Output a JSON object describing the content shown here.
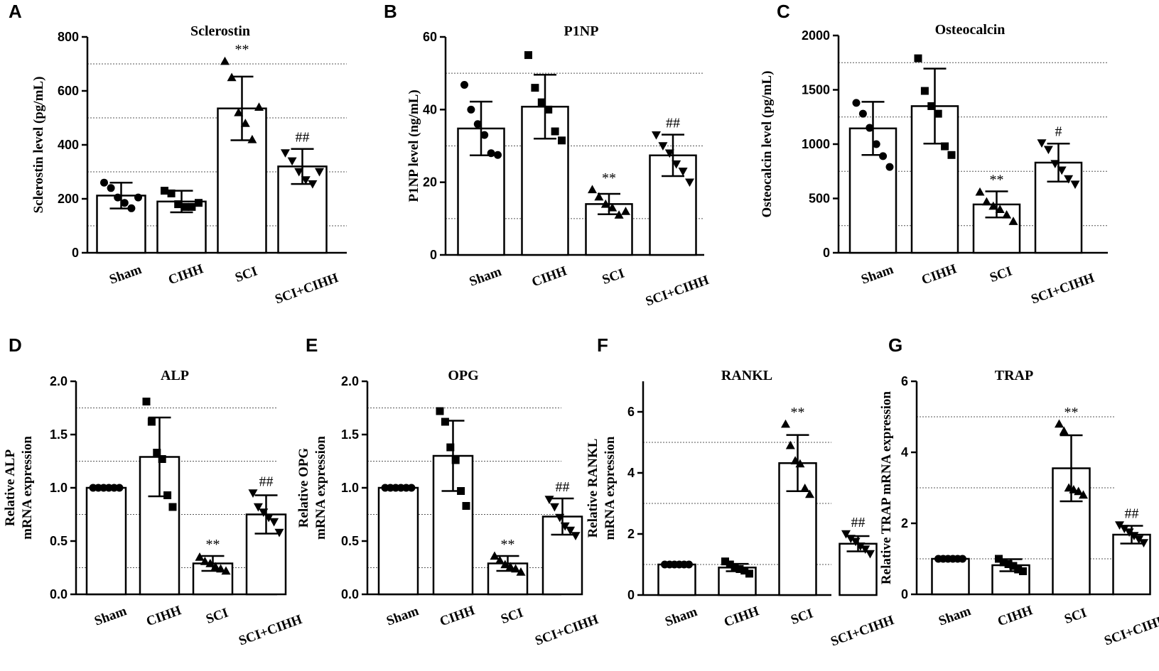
{
  "chart_data": [
    {
      "panel": "A",
      "type": "bar",
      "title": "Sclerostin",
      "ylabel": "Sclerostin level (pg/mL)",
      "ylabel2": "",
      "ylim": [
        0,
        800
      ],
      "yticks": [
        {
          "v": 0,
          "label": "0"
        },
        {
          "v": 200,
          "label": "200"
        },
        {
          "v": 400,
          "label": "400"
        },
        {
          "v": 600,
          "label": "600"
        },
        {
          "v": 800,
          "label": "800"
        }
      ],
      "gridlines": [
        100,
        300,
        500,
        700
      ],
      "categories": [
        "Sham",
        "CIHH",
        "SCI",
        "SCI+CIHH"
      ],
      "values": [
        212,
        190,
        535,
        320
      ],
      "sd": [
        48,
        40,
        118,
        65
      ],
      "points": [
        [
          260,
          240,
          205,
          185,
          165,
          205
        ],
        [
          230,
          220,
          180,
          170,
          170,
          185
        ],
        [
          710,
          650,
          520,
          480,
          420,
          540
        ],
        [
          370,
          340,
          300,
          270,
          255,
          300
        ]
      ],
      "markers": [
        "circle",
        "square",
        "triangle",
        "triangle-down"
      ],
      "annotations": [
        "",
        "",
        "**",
        "##"
      ]
    },
    {
      "panel": "B",
      "type": "bar",
      "title": "P1NP",
      "ylabel": "P1NP level (ng/mL)",
      "ylabel2": "",
      "ylim": [
        0,
        60
      ],
      "yticks": [
        {
          "v": 0,
          "label": "0"
        },
        {
          "v": 20,
          "label": "20"
        },
        {
          "v": 40,
          "label": "40"
        },
        {
          "v": 60,
          "label": "60"
        }
      ],
      "gridlines": [
        10,
        30,
        50
      ],
      "categories": [
        "Sham",
        "CIHH",
        "SCI",
        "SCI+CIHH"
      ],
      "values": [
        34.8,
        40.8,
        14.0,
        27.4
      ],
      "sd": [
        7.4,
        8.8,
        2.8,
        5.7
      ],
      "points": [
        [
          46.8,
          40,
          36,
          33,
          28,
          27.5
        ],
        [
          55,
          46,
          42,
          40,
          34,
          31.5
        ],
        [
          18,
          16,
          14,
          13,
          11,
          12
        ],
        [
          33,
          30,
          28,
          25,
          23,
          20
        ]
      ],
      "markers": [
        "circle",
        "square",
        "triangle",
        "triangle-down"
      ],
      "annotations": [
        "",
        "",
        "**",
        "##"
      ]
    },
    {
      "panel": "C",
      "type": "bar",
      "title": "Osteocalcin",
      "ylabel": "Osteocalcin level (pg/mL)",
      "ylabel2": "",
      "ylim": [
        0,
        2000
      ],
      "yticks": [
        {
          "v": 0,
          "label": "0"
        },
        {
          "v": 500,
          "label": "500"
        },
        {
          "v": 1000,
          "label": "1000"
        },
        {
          "v": 1500,
          "label": "1500"
        },
        {
          "v": 2000,
          "label": "2000"
        }
      ],
      "gridlines": [
        250,
        750,
        1250,
        1750
      ],
      "categories": [
        "Sham",
        "CIHH",
        "SCI",
        "SCI+CIHH"
      ],
      "values": [
        1145,
        1350,
        445,
        830
      ],
      "sd": [
        245,
        345,
        120,
        175
      ],
      "points": [
        [
          1380,
          1280,
          1150,
          1000,
          890,
          790
        ],
        [
          1790,
          1490,
          1350,
          1280,
          980,
          900
        ],
        [
          560,
          470,
          430,
          400,
          350,
          290
        ],
        [
          1010,
          950,
          820,
          760,
          680,
          630
        ]
      ],
      "markers": [
        "circle",
        "square",
        "triangle",
        "triangle-down"
      ],
      "annotations": [
        "",
        "",
        "**",
        "#"
      ]
    },
    {
      "panel": "D",
      "type": "bar",
      "title": "ALP",
      "ylabel": "Relative ALP",
      "ylabel2": "mRNA expression",
      "ylim": [
        0,
        2.0
      ],
      "yticks": [
        {
          "v": 0,
          "label": "0.0"
        },
        {
          "v": 0.5,
          "label": "0.5"
        },
        {
          "v": 1.0,
          "label": "1.0"
        },
        {
          "v": 1.5,
          "label": "1.5"
        },
        {
          "v": 2.0,
          "label": "2.0"
        }
      ],
      "gridlines": [
        0.25,
        0.75,
        1.25,
        1.75
      ],
      "categories": [
        "Sham",
        "CIHH",
        "SCI",
        "SCI+CIHH"
      ],
      "values": [
        1.0,
        1.29,
        0.29,
        0.75
      ],
      "sd": [
        0.0,
        0.37,
        0.07,
        0.18
      ],
      "points": [
        [
          1.0,
          1.0,
          1.0,
          1.0,
          1.0,
          1.0
        ],
        [
          1.81,
          1.62,
          1.33,
          1.27,
          0.93,
          0.82
        ],
        [
          0.35,
          0.31,
          0.29,
          0.26,
          0.24,
          0.22
        ],
        [
          0.95,
          0.82,
          0.77,
          0.72,
          0.68,
          0.58
        ]
      ],
      "markers": [
        "circle",
        "square",
        "triangle",
        "triangle-down"
      ],
      "annotations": [
        "",
        "",
        "**",
        "##"
      ]
    },
    {
      "panel": "E",
      "type": "bar",
      "title": "OPG",
      "ylabel": "Relative OPG",
      "ylabel2": "mRNA expression",
      "ylim": [
        0,
        2.0
      ],
      "yticks": [
        {
          "v": 0,
          "label": "0.0"
        },
        {
          "v": 0.5,
          "label": "0.5"
        },
        {
          "v": 1.0,
          "label": "1.0"
        },
        {
          "v": 1.5,
          "label": "1.5"
        },
        {
          "v": 2.0,
          "label": "2.0"
        }
      ],
      "gridlines": [
        0.25,
        0.75,
        1.25,
        1.75
      ],
      "categories": [
        "Sham",
        "CIHH",
        "SCI",
        "SCI+CIHH"
      ],
      "values": [
        1.0,
        1.3,
        0.29,
        0.73
      ],
      "sd": [
        0.0,
        0.33,
        0.07,
        0.17
      ],
      "points": [
        [
          1.0,
          1.0,
          1.0,
          1.0,
          1.0,
          1.0
        ],
        [
          1.72,
          1.62,
          1.38,
          1.26,
          0.97,
          0.83
        ],
        [
          0.36,
          0.32,
          0.28,
          0.26,
          0.24,
          0.21
        ],
        [
          0.89,
          0.82,
          0.72,
          0.64,
          0.6,
          0.55
        ]
      ],
      "markers": [
        "circle",
        "square",
        "triangle",
        "triangle-down"
      ],
      "annotations": [
        "",
        "",
        "**",
        "##"
      ]
    },
    {
      "panel": "F",
      "type": "bar",
      "title": "RANKL",
      "ylabel": "Relative RANKL",
      "ylabel2": "mRNA expression",
      "ylim": [
        0,
        7
      ],
      "yticks": [
        {
          "v": 0,
          "label": "0"
        },
        {
          "v": 2,
          "label": "2"
        },
        {
          "v": 4,
          "label": "4"
        },
        {
          "v": 6,
          "label": "6"
        }
      ],
      "gridlines": [
        1,
        3,
        5
      ],
      "categories": [
        "Sham",
        "CIHH",
        "SCI",
        "SCI+CIHH"
      ],
      "values": [
        1.0,
        0.9,
        4.32,
        1.68
      ],
      "sd": [
        0.0,
        0.12,
        0.92,
        0.25
      ],
      "points": [
        [
          1.0,
          1.0,
          1.0,
          1.0,
          1.0,
          1.0
        ],
        [
          1.1,
          1.0,
          0.9,
          0.85,
          0.8,
          0.7
        ],
        [
          5.6,
          4.9,
          4.4,
          4.3,
          3.5,
          3.3
        ],
        [
          2.0,
          1.85,
          1.75,
          1.6,
          1.5,
          1.35
        ]
      ],
      "markers": [
        "circle",
        "square",
        "triangle",
        "triangle-down"
      ],
      "annotations": [
        "",
        "",
        "**",
        "##"
      ]
    },
    {
      "panel": "G",
      "type": "bar",
      "title": "TRAP",
      "ylabel": "Relative TRAP mRNA expression",
      "ylabel2": "",
      "ylim": [
        0,
        6
      ],
      "yticks": [
        {
          "v": 0,
          "label": "0"
        },
        {
          "v": 2,
          "label": "2"
        },
        {
          "v": 4,
          "label": "4"
        },
        {
          "v": 6,
          "label": "6"
        }
      ],
      "gridlines": [
        1,
        3,
        5
      ],
      "categories": [
        "Sham",
        "CIHH",
        "SCI",
        "SCI+CIHH"
      ],
      "values": [
        1.0,
        0.82,
        3.55,
        1.68
      ],
      "sd": [
        0.0,
        0.17,
        0.93,
        0.25
      ],
      "points": [
        [
          1.0,
          1.0,
          1.0,
          1.0,
          1.0,
          1.0
        ],
        [
          1.0,
          0.9,
          0.85,
          0.8,
          0.7,
          0.65
        ],
        [
          4.8,
          4.6,
          3.0,
          2.95,
          2.9,
          2.8
        ],
        [
          1.95,
          1.85,
          1.75,
          1.65,
          1.55,
          1.45
        ]
      ],
      "markers": [
        "circle",
        "square",
        "triangle",
        "triangle-down"
      ],
      "annotations": [
        "",
        "",
        "**",
        "##"
      ]
    }
  ]
}
